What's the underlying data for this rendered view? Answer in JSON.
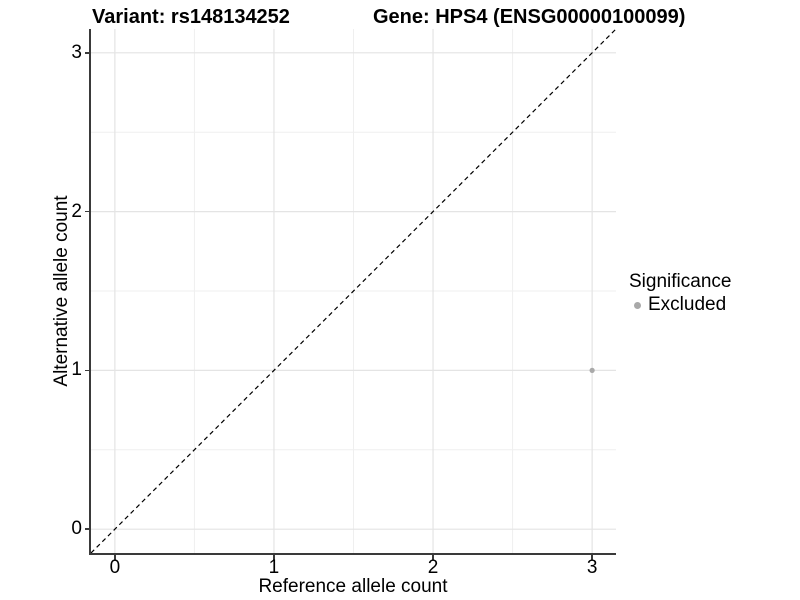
{
  "figure": {
    "title_left": "Variant: rs148134252",
    "title_right": "Gene: HPS4 (ENSG00000100099)"
  },
  "chart_data": {
    "type": "scatter",
    "title_left": "Variant: rs148134252",
    "title_right": "Gene: HPS4 (ENSG00000100099)",
    "xlabel": "Reference allele count",
    "ylabel": "Alternative allele count",
    "xlim": [
      0,
      3
    ],
    "ylim": [
      0,
      3
    ],
    "xticks": [
      0,
      1,
      2,
      3
    ],
    "yticks": [
      0,
      1,
      2,
      3
    ],
    "expansion": 0.05,
    "grid": {
      "major": true,
      "minor": true,
      "minor_step": 0.5
    },
    "reference_line": {
      "slope": 1,
      "intercept": 0,
      "style": "dashed",
      "color": "#000000"
    },
    "series": [
      {
        "name": "Excluded",
        "color": "#a9a9a9",
        "point_radius": 2.6,
        "points": [
          {
            "x": 3,
            "y": 1
          }
        ]
      }
    ],
    "legend": {
      "title": "Significance",
      "position": "right"
    },
    "style": {
      "grid_major_color": "#e4e4e4",
      "grid_minor_color": "#efefef",
      "axis_line_color": "#3a3a3a",
      "background": "#ffffff"
    }
  }
}
